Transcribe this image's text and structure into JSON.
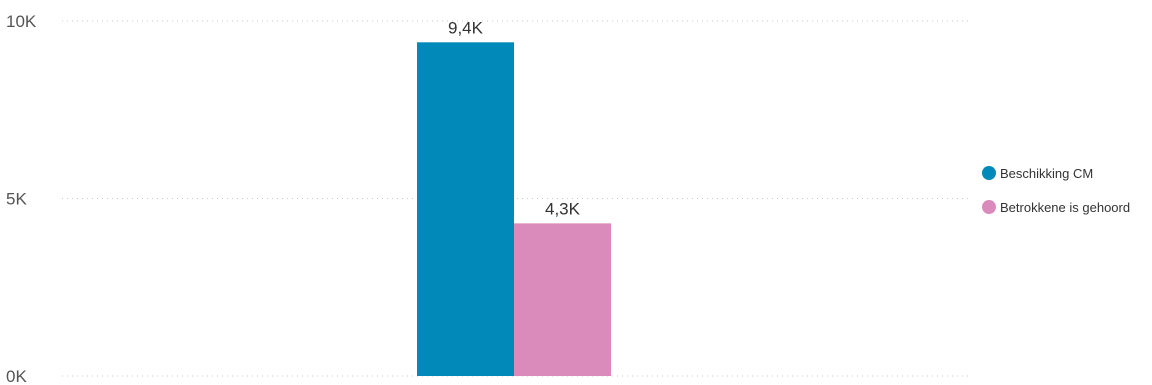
{
  "chart_data": {
    "type": "bar",
    "categories": [
      ""
    ],
    "series": [
      {
        "name": "Beschikking CM",
        "values": [
          9400
        ],
        "label": "9,4K",
        "color": "#0089B9"
      },
      {
        "name": "Betrokkene is gehoord",
        "values": [
          4300
        ],
        "label": "4,3K",
        "color": "#DB8BBB"
      }
    ],
    "ylim": [
      0,
      10000
    ],
    "yticks": [
      {
        "value": 0,
        "label": "0K"
      },
      {
        "value": 5000,
        "label": "5K"
      },
      {
        "value": 10000,
        "label": "10K"
      }
    ],
    "grid": true,
    "legend_position": "right",
    "title": "",
    "xlabel": "",
    "ylabel": ""
  }
}
